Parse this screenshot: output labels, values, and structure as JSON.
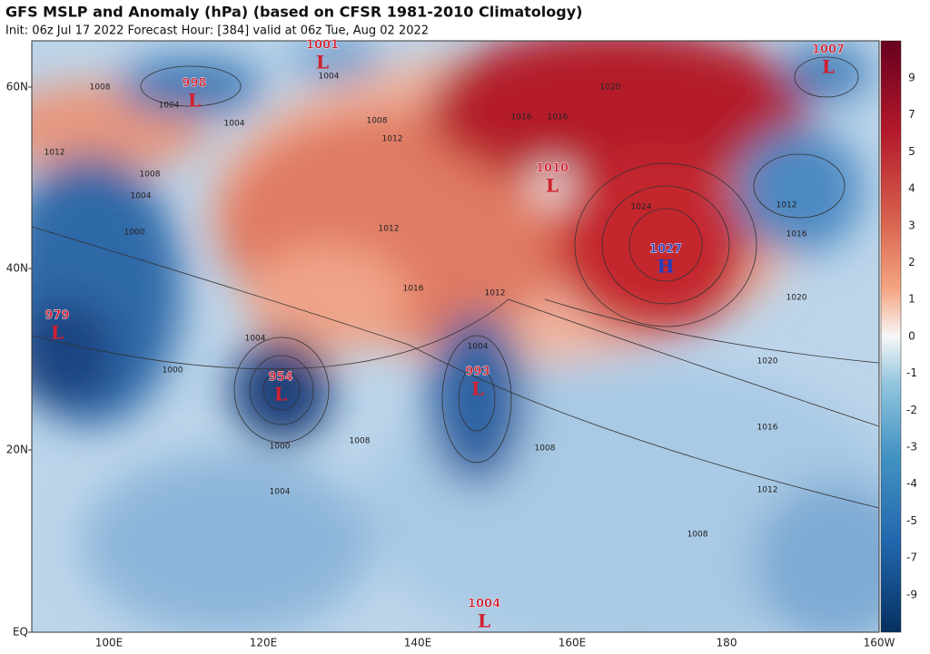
{
  "header": {
    "title": "GFS MSLP and Anomaly (hPa) (based on CFSR 1981-2010 Climatology)",
    "subtitle": "Init: 06z Jul 17 2022   Forecast Hour: [384]   valid at 06z Tue, Aug 02 2022"
  },
  "latitude_labels": [
    "60N",
    "40N",
    "20N",
    "EQ"
  ],
  "longitude_labels": [
    "100E",
    "120E",
    "140E",
    "160E",
    "180",
    "160W"
  ],
  "colorbar": {
    "labels": [
      "9",
      "7",
      "5",
      "4",
      "3",
      "2",
      "1",
      "0",
      "-1",
      "-2",
      "-3",
      "-4",
      "-5",
      "-7",
      "-9"
    ]
  },
  "centers": [
    {
      "value": "1001",
      "letter": "L"
    },
    {
      "value": "998",
      "letter": "L"
    },
    {
      "value": "1007",
      "letter": "L"
    },
    {
      "value": "1010",
      "letter": "L"
    },
    {
      "value": "1027",
      "letter": "H"
    },
    {
      "value": "979",
      "letter": "L"
    },
    {
      "value": "954",
      "letter": "L"
    },
    {
      "value": "993",
      "letter": "L"
    },
    {
      "value": "1004",
      "letter": "L"
    }
  ],
  "isobar_labels": [
    "1008",
    "1004",
    "1004",
    "1004",
    "1012",
    "1008",
    "1004",
    "1000",
    "1008",
    "1012",
    "1016",
    "1016",
    "1020",
    "1024",
    "1016",
    "1020",
    "1012",
    "1012",
    "1004",
    "1000",
    "1000",
    "1008",
    "1004",
    "1004",
    "1008",
    "1020",
    "1016",
    "1012",
    "1008",
    "1012",
    "1016"
  ]
}
